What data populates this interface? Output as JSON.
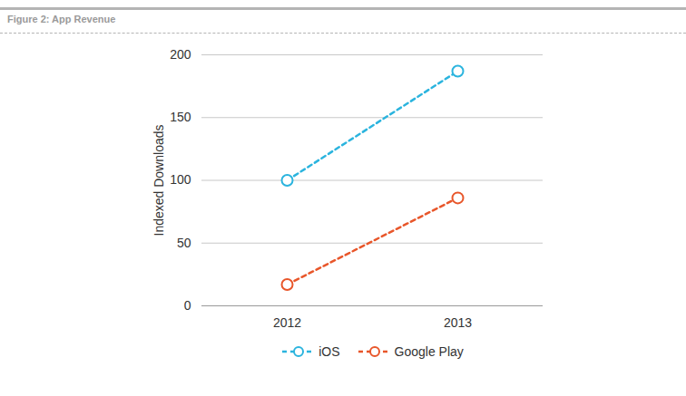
{
  "chart_data": {
    "type": "line",
    "title": "Figure 2: App Revenue",
    "y_label": "Indexed Downloads",
    "categories": [
      "2012",
      "2013"
    ],
    "series": [
      {
        "name": "iOS",
        "color": "#2bb4de",
        "values": [
          100,
          187
        ],
        "marker": "circle",
        "line_style": "dashed"
      },
      {
        "name": "Google Play",
        "color": "#e8562a",
        "values": [
          17,
          86
        ],
        "marker": "circle",
        "line_style": "dashed"
      }
    ],
    "ylim": [
      0,
      200
    ],
    "yticks": [
      0,
      50,
      100,
      150,
      200
    ],
    "grid": true,
    "legend": "bottom"
  }
}
